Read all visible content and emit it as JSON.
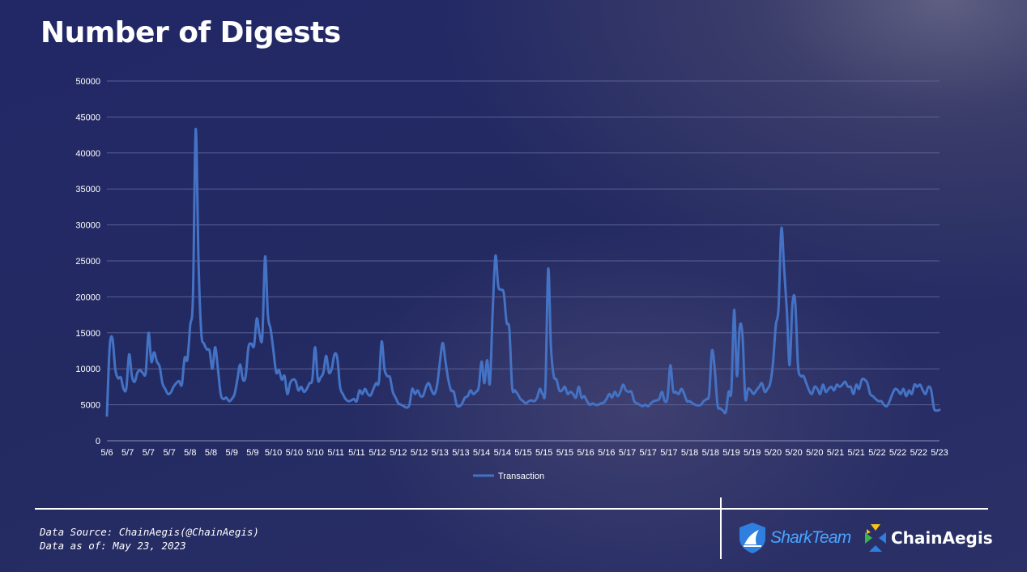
{
  "header": {
    "title": "Number of Digests"
  },
  "footer": {
    "source_line": "Data Source: ChainAegis(@ChainAegis)",
    "date_line": "Data as of: May 23, 2023",
    "logo_sharkteam": "SharkTeam",
    "logo_chainaegis": "ChainAegis"
  },
  "colors": {
    "line": "#4472c4",
    "grid": "#5a6194",
    "axis_text": "#ffffff"
  },
  "chart_data": {
    "type": "line",
    "title": "",
    "xlabel": "",
    "ylabel": "",
    "ylim": [
      0,
      50000
    ],
    "yticks": [
      0,
      5000,
      10000,
      15000,
      20000,
      25000,
      30000,
      35000,
      40000,
      45000,
      50000
    ],
    "grid": true,
    "legend_position": "bottom",
    "x_tick_labels": [
      "5/6",
      "5/7",
      "5/7",
      "5/7",
      "5/8",
      "5/8",
      "5/9",
      "5/9",
      "5/10",
      "5/10",
      "5/10",
      "5/11",
      "5/11",
      "5/12",
      "5/12",
      "5/12",
      "5/13",
      "5/13",
      "5/14",
      "5/14",
      "5/15",
      "5/15",
      "5/15",
      "5/16",
      "5/16",
      "5/17",
      "5/17",
      "5/17",
      "5/18",
      "5/18",
      "5/19",
      "5/19",
      "5/20",
      "5/20",
      "5/20",
      "5/21",
      "5/21",
      "5/22",
      "5/22",
      "5/22",
      "5/23"
    ],
    "series": [
      {
        "name": "Transaction",
        "values": [
          3500,
          13000,
          14200,
          10000,
          8700,
          8800,
          7200,
          7300,
          12000,
          9000,
          8200,
          9500,
          9800,
          9400,
          9500,
          15000,
          11000,
          12300,
          11000,
          10300,
          8000,
          7200,
          6500,
          6700,
          7500,
          8000,
          8300,
          7800,
          11500,
          11300,
          16000,
          20000,
          43300,
          25000,
          15000,
          13500,
          12700,
          12500,
          10000,
          13000,
          10000,
          6500,
          5800,
          6000,
          5500,
          5800,
          6500,
          8500,
          10600,
          8500,
          9000,
          13000,
          13500,
          13200,
          17000,
          14800,
          14500,
          25600,
          17500,
          15500,
          12500,
          9500,
          9800,
          8500,
          9000,
          6500,
          8000,
          8500,
          8300,
          7000,
          7500,
          6800,
          7200,
          8000,
          8500,
          13000,
          8500,
          8800,
          9500,
          11800,
          9500,
          10000,
          12000,
          11500,
          7500,
          6500,
          5800,
          5500,
          5600,
          5800,
          5500,
          7000,
          6500,
          7200,
          6500,
          6300,
          7200,
          8000,
          8200,
          13800,
          10000,
          9000,
          8800,
          6800,
          6000,
          5200,
          5000,
          4800,
          4600,
          5000,
          7200,
          6500,
          7000,
          6200,
          6300,
          7500,
          8000,
          7000,
          6500,
          7800,
          11000,
          13600,
          11000,
          8500,
          7000,
          6800,
          5000,
          4800,
          5200,
          6000,
          6200,
          7000,
          6500,
          6800,
          7500,
          11000,
          8000,
          11200,
          8000,
          18000,
          25700,
          21500,
          21000,
          20500,
          16500,
          15500,
          7500,
          7000,
          6500,
          5800,
          5500,
          5200,
          5500,
          5600,
          5500,
          6000,
          7200,
          6500,
          7500,
          23900,
          13000,
          9000,
          8500,
          7000,
          7000,
          7500,
          6500,
          6800,
          6500,
          6000,
          7500,
          6000,
          6200,
          5500,
          5000,
          5200,
          5000,
          5000,
          5200,
          5300,
          5800,
          6500,
          6000,
          6800,
          6200,
          6800,
          7800,
          7000,
          6800,
          6800,
          5500,
          5200,
          5000,
          4800,
          5000,
          4800,
          5200,
          5500,
          5600,
          5800,
          6800,
          5500,
          6000,
          10500,
          7000,
          6800,
          6500,
          7200,
          6500,
          5500,
          5500,
          5200,
          5000,
          4900,
          5000,
          5500,
          5800,
          6500,
          12500,
          10000,
          5000,
          4500,
          4200,
          4000,
          6800,
          7000,
          18200,
          9000,
          15800,
          14700,
          6000,
          7200,
          7000,
          6500,
          7000,
          7500,
          8000,
          6800,
          7200,
          8000,
          10800,
          16000,
          18500,
          29500,
          24000,
          18000,
          10500,
          19000,
          19300,
          10500,
          9000,
          9000,
          8000,
          7000,
          6500,
          7500,
          7200,
          6500,
          7800,
          6800,
          7200,
          7500,
          7000,
          7800,
          7500,
          7800,
          8200,
          7500,
          7500,
          6500,
          7800,
          7200,
          8500,
          8500,
          8000,
          6500,
          6200,
          5800,
          5500,
          5500,
          5000,
          4800,
          5500,
          6500,
          7200,
          7000,
          6500,
          7200,
          6200,
          7000,
          6500,
          7800,
          7500,
          7800,
          7000,
          6500,
          7500,
          7000,
          4500,
          4200,
          4300
        ]
      }
    ]
  }
}
